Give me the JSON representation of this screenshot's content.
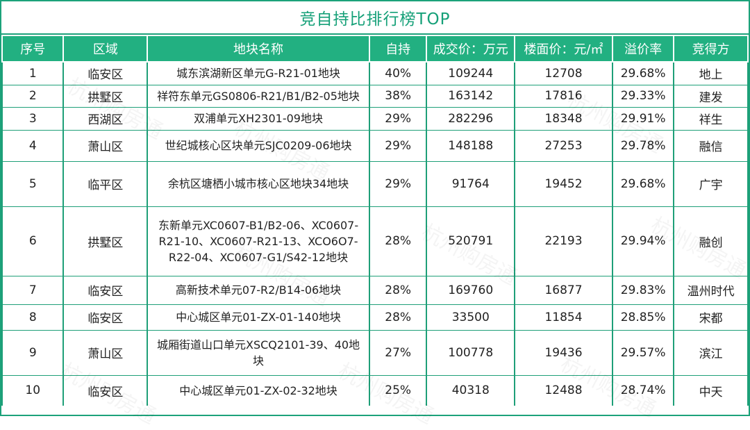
{
  "title": "竞自持比排行榜TOP",
  "headers": [
    "序号",
    "区域",
    "地块名称",
    "自持",
    "成交价：万元",
    "楼面价：元/㎡",
    "溢价率",
    "竞得方"
  ],
  "rows": [
    {
      "no": "1",
      "district": "临安区",
      "plot": "城东滨湖新区单元G-R21-01地块",
      "ratio": "40%",
      "price": "109244",
      "floor_price": "12708",
      "premium": "29.68%",
      "winner": "地上"
    },
    {
      "no": "2",
      "district": "拱墅区",
      "plot": "祥符东单元GS0806-R21/B1/B2-05地块",
      "ratio": "38%",
      "price": "163142",
      "floor_price": "17816",
      "premium": "29.33%",
      "winner": "建发"
    },
    {
      "no": "3",
      "district": "西湖区",
      "plot": "双浦单元XH2301-09地块",
      "ratio": "29%",
      "price": "282296",
      "floor_price": "18348",
      "premium": "29.91%",
      "winner": "祥生"
    },
    {
      "no": "4",
      "district": "萧山区",
      "plot": "世纪城核心区块单元SJC0209-06地块",
      "ratio": "29%",
      "price": "148188",
      "floor_price": "27253",
      "premium": "29.78%",
      "winner": "融信"
    },
    {
      "no": "5",
      "district": "临平区",
      "plot": "余杭区塘栖小城市核心区地块34地块",
      "ratio": "29%",
      "price": "91764",
      "floor_price": "19452",
      "premium": "29.68%",
      "winner": "广宇"
    },
    {
      "no": "6",
      "district": "拱墅区",
      "plot_lines": [
        "东新单元XC0607-B1/B2-06、XC0607-",
        "R21-10、XC0607-R21-13、XCO6O7-",
        "R22-04、XC0607-G1/S42-12地块"
      ],
      "ratio": "28%",
      "price": "520791",
      "floor_price": "22193",
      "premium": "29.94%",
      "winner": "融创"
    },
    {
      "no": "7",
      "district": "临安区",
      "plot": "高新技术单元07-R2/B14-06地块",
      "ratio": "28%",
      "price": "169760",
      "floor_price": "16877",
      "premium": "29.83%",
      "winner": "温州时代"
    },
    {
      "no": "8",
      "district": "临安区",
      "plot": "中心城区单元01-ZX-01-140地块",
      "ratio": "28%",
      "price": "33500",
      "floor_price": "11854",
      "premium": "28.85%",
      "winner": "宋都"
    },
    {
      "no": "9",
      "district": "萧山区",
      "plot_lines": [
        "城厢街道山口单元XSCQ2101-39、40地",
        "块"
      ],
      "ratio": "27%",
      "price": "100778",
      "floor_price": "19436",
      "premium": "29.57%",
      "winner": "滨江"
    },
    {
      "no": "10",
      "district": "临安区",
      "plot": "中心城区单元01-ZX-02-32地块",
      "ratio": "25%",
      "price": "40318",
      "floor_price": "12488",
      "premium": "28.74%",
      "winner": "中天"
    }
  ],
  "watermark": "杭州购房通"
}
